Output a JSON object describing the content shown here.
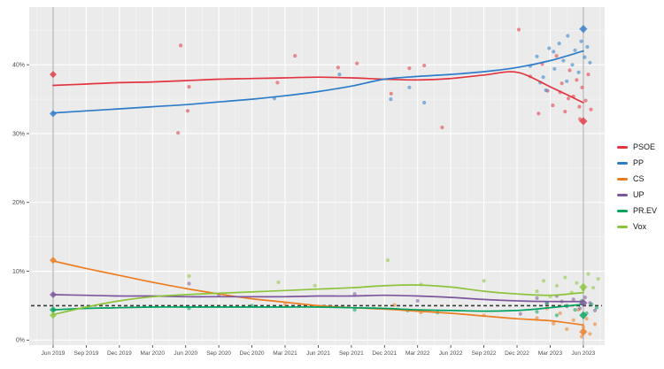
{
  "chart_data": {
    "type": "line",
    "title": "",
    "grid": true,
    "legend_position": "right",
    "panel_background": "#ebebeb",
    "gridline_color": "#ffffff",
    "tick_label_color": "#4d4d4d",
    "x_axis": {
      "tick_labels": [
        "Jun 2019",
        "Sep 2019",
        "Dec 2019",
        "Mar 2020",
        "Jun 2020",
        "Sep 2020",
        "Dec 2020",
        "Mar 2021",
        "Jun 2021",
        "Sep 2021",
        "Dec 2021",
        "Mar 2022",
        "Jun 2022",
        "Sep 2022",
        "Dec 2022",
        "Mar 2023",
        "Jun 2023"
      ]
    },
    "y_axis": {
      "values": [
        0,
        10,
        20,
        30,
        40
      ],
      "tick_labels": [
        "0%",
        "10%",
        "20%",
        "30%",
        "40%"
      ],
      "minor_values": [
        5,
        15,
        25,
        35,
        45
      ],
      "format": "percent"
    },
    "ylim": [
      -0.8,
      48.4
    ],
    "threshold_line": {
      "value": 5,
      "style": "dashed",
      "color": "#3b3b3b"
    },
    "election_markers": {
      "start_x_index": 0,
      "end_x_index": 16,
      "line_color": "#b5b5b5"
    },
    "series": [
      {
        "name": "PSOE",
        "color": "#e23540",
        "trend": [
          37.0,
          37.2,
          37.4,
          37.5,
          37.7,
          37.9,
          38.0,
          38.1,
          38.2,
          38.1,
          37.9,
          37.8,
          38.0,
          38.5,
          38.9,
          36.8,
          34.5
        ],
        "result_start": 38.6,
        "result_end": 31.8,
        "polls": [
          [
            3.85,
            42.8
          ],
          [
            4.1,
            36.8
          ],
          [
            4.06,
            33.3
          ],
          [
            3.77,
            30.1
          ],
          [
            6.77,
            37.4
          ],
          [
            7.3,
            41.3
          ],
          [
            8.6,
            39.6
          ],
          [
            9.17,
            40.2
          ],
          [
            10.2,
            35.8
          ],
          [
            10.75,
            39.5
          ],
          [
            11.2,
            39.9
          ],
          [
            11.74,
            30.9
          ],
          [
            14.05,
            45.1
          ],
          [
            14.4,
            38.3
          ],
          [
            14.65,
            32.9
          ],
          [
            14.76,
            40.1
          ],
          [
            14.92,
            36.2
          ],
          [
            15.08,
            34.1
          ],
          [
            15.19,
            41.3
          ],
          [
            15.3,
            36.0
          ],
          [
            15.35,
            37.3
          ],
          [
            15.45,
            33.2
          ],
          [
            15.55,
            35.1
          ],
          [
            15.59,
            39.2
          ],
          [
            15.7,
            35.4
          ],
          [
            15.8,
            37.8
          ],
          [
            15.88,
            33.9
          ],
          [
            15.9,
            32.1
          ],
          [
            15.96,
            36.7
          ],
          [
            16.07,
            34.8
          ],
          [
            16.15,
            38.6
          ],
          [
            16.23,
            33.5
          ]
        ]
      },
      {
        "name": "PP",
        "color": "#2d7cc9",
        "trend": [
          33.0,
          33.3,
          33.6,
          33.9,
          34.2,
          34.6,
          35.0,
          35.5,
          36.1,
          36.9,
          37.9,
          38.3,
          38.6,
          39.0,
          39.6,
          40.6,
          42.0
        ],
        "result_start": 32.9,
        "result_end": 45.2,
        "polls": [
          [
            6.68,
            35.1
          ],
          [
            8.64,
            38.6
          ],
          [
            10.19,
            35.0
          ],
          [
            10.75,
            36.7
          ],
          [
            11.2,
            34.5
          ],
          [
            14.4,
            39.8
          ],
          [
            14.6,
            41.2
          ],
          [
            14.7,
            37.4
          ],
          [
            14.79,
            38.2
          ],
          [
            14.87,
            36.3
          ],
          [
            14.97,
            42.4
          ],
          [
            15.1,
            41.9
          ],
          [
            15.13,
            39.4
          ],
          [
            15.27,
            43.1
          ],
          [
            15.4,
            40.6
          ],
          [
            15.5,
            37.6
          ],
          [
            15.53,
            44.2
          ],
          [
            15.67,
            40.0
          ],
          [
            15.75,
            42.1
          ],
          [
            15.86,
            38.9
          ],
          [
            15.94,
            43.4
          ],
          [
            16.04,
            41.1
          ],
          [
            16.12,
            42.6
          ],
          [
            16.2,
            40.3
          ]
        ]
      },
      {
        "name": "CS",
        "color": "#ec7d21",
        "trend": [
          11.5,
          10.4,
          9.4,
          8.4,
          7.5,
          6.7,
          6.0,
          5.5,
          5.0,
          4.7,
          4.5,
          4.2,
          3.9,
          3.5,
          3.1,
          2.8,
          2.2
        ],
        "result_start": 11.6,
        "result_end": 1.2,
        "polls": [
          [
            7.0,
            5.2
          ],
          [
            10.3,
            5.1
          ],
          [
            11.1,
            4.0
          ],
          [
            13.0,
            3.6
          ],
          [
            14.6,
            3.2
          ],
          [
            14.9,
            4.6
          ],
          [
            15.1,
            2.4
          ],
          [
            15.3,
            3.9
          ],
          [
            15.5,
            1.6
          ],
          [
            15.7,
            2.9
          ],
          [
            15.85,
            4.4
          ],
          [
            15.95,
            0.5
          ],
          [
            16.0,
            1.9
          ],
          [
            16.1,
            3.1
          ],
          [
            16.2,
            0.9
          ],
          [
            16.35,
            2.3
          ]
        ]
      },
      {
        "name": "UP",
        "color": "#7d559d",
        "trend": [
          6.6,
          6.5,
          6.4,
          6.4,
          6.3,
          6.3,
          6.3,
          6.3,
          6.4,
          6.4,
          6.5,
          6.4,
          6.2,
          5.9,
          5.7,
          5.6,
          5.6
        ],
        "result_start": 6.6,
        "result_end": 5.4,
        "polls": [
          [
            4.1,
            8.2
          ],
          [
            5.0,
            6.6
          ],
          [
            9.1,
            6.7
          ],
          [
            11.0,
            5.7
          ],
          [
            14.1,
            3.8
          ],
          [
            14.6,
            6.1
          ],
          [
            14.9,
            5.3
          ],
          [
            15.2,
            6.4
          ],
          [
            15.35,
            5.6
          ],
          [
            15.5,
            4.9
          ],
          [
            15.7,
            5.9
          ],
          [
            15.9,
            4.6
          ],
          [
            16.05,
            6.2
          ],
          [
            16.2,
            5.4
          ],
          [
            16.35,
            4.3
          ]
        ]
      },
      {
        "name": "PR.EV",
        "color": "#00a261",
        "trend": [
          4.4,
          4.6,
          4.7,
          4.8,
          4.8,
          4.8,
          4.8,
          4.8,
          4.8,
          4.7,
          4.6,
          4.4,
          4.3,
          4.2,
          4.3,
          4.7,
          5.2
        ],
        "result_start": 4.4,
        "result_end": 3.6,
        "polls": [
          [
            4.1,
            4.6
          ],
          [
            6.0,
            5.0
          ],
          [
            9.1,
            4.4
          ],
          [
            10.7,
            4.3
          ],
          [
            11.6,
            4.0
          ],
          [
            14.6,
            4.1
          ],
          [
            14.9,
            5.4
          ],
          [
            15.2,
            3.6
          ],
          [
            15.5,
            5.0
          ],
          [
            15.75,
            4.4
          ],
          [
            15.95,
            5.7
          ],
          [
            16.1,
            3.9
          ],
          [
            16.25,
            5.2
          ],
          [
            16.4,
            4.7
          ]
        ]
      },
      {
        "name": "Vox",
        "color": "#8cc43c",
        "trend": [
          3.7,
          4.8,
          5.7,
          6.3,
          6.6,
          6.8,
          7.0,
          7.2,
          7.4,
          7.6,
          7.9,
          8.0,
          7.7,
          7.1,
          6.7,
          6.5,
          6.9
        ],
        "result_start": 3.6,
        "result_end": 7.7,
        "polls": [
          [
            4.1,
            9.3
          ],
          [
            6.8,
            8.4
          ],
          [
            7.9,
            7.9
          ],
          [
            10.1,
            11.6
          ],
          [
            11.1,
            8.1
          ],
          [
            13.0,
            8.6
          ],
          [
            14.6,
            7.1
          ],
          [
            14.8,
            8.6
          ],
          [
            15.0,
            6.3
          ],
          [
            15.2,
            7.9
          ],
          [
            15.45,
            9.1
          ],
          [
            15.65,
            6.9
          ],
          [
            15.8,
            8.3
          ],
          [
            16.0,
            7.3
          ],
          [
            16.15,
            9.6
          ],
          [
            16.3,
            7.6
          ],
          [
            16.45,
            8.9
          ]
        ]
      }
    ]
  }
}
